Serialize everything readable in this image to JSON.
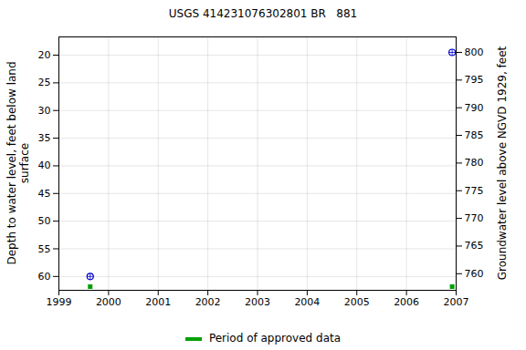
{
  "chart_data": {
    "type": "scatter",
    "title": "USGS 414231076302801 BR   881",
    "ylabel": "Depth to water level, feet below land\nsurface",
    "y2label": "Groundwater level above NGVD 1929, feet",
    "x": [
      1999.63,
      2006.92
    ],
    "values": [
      60,
      19.5
    ],
    "color": "#0000cc",
    "marker": "circle",
    "xlim": [
      1999,
      2007
    ],
    "xticks": [
      1999,
      2000,
      2001,
      2002,
      2003,
      2004,
      2005,
      2006,
      2007
    ],
    "ylim": [
      16.7,
      62.5
    ],
    "yticks": [
      20,
      25,
      30,
      35,
      40,
      45,
      50,
      55,
      60
    ],
    "y2lim": [
      757,
      802.8
    ],
    "y2ticks": [
      760,
      765,
      770,
      775,
      780,
      785,
      790,
      795,
      800
    ],
    "grid": true,
    "approved": {
      "name": "Period of approved data",
      "color": "#00a000",
      "x": [
        1999.63,
        2006.92
      ]
    }
  }
}
